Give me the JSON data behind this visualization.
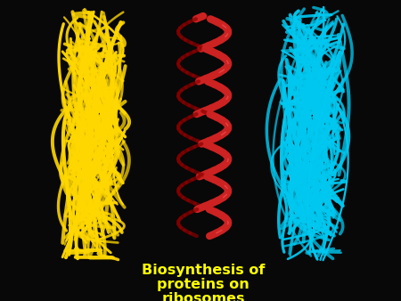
{
  "background_color": "#080808",
  "text_line1": "Biosynthesis of",
  "text_line2": "proteins on",
  "text_line3": "ribosomes",
  "text_color": "#ffff00",
  "text_fontsize": 11.5,
  "yellow_color": "#ffd700",
  "cyan_color": "#00c8f0",
  "red_dark": "#8b0000",
  "red_mid": "#cc2222",
  "red_light": "#ff6666",
  "fig_width": 4.5,
  "fig_height": 3.38,
  "dpi": 100
}
